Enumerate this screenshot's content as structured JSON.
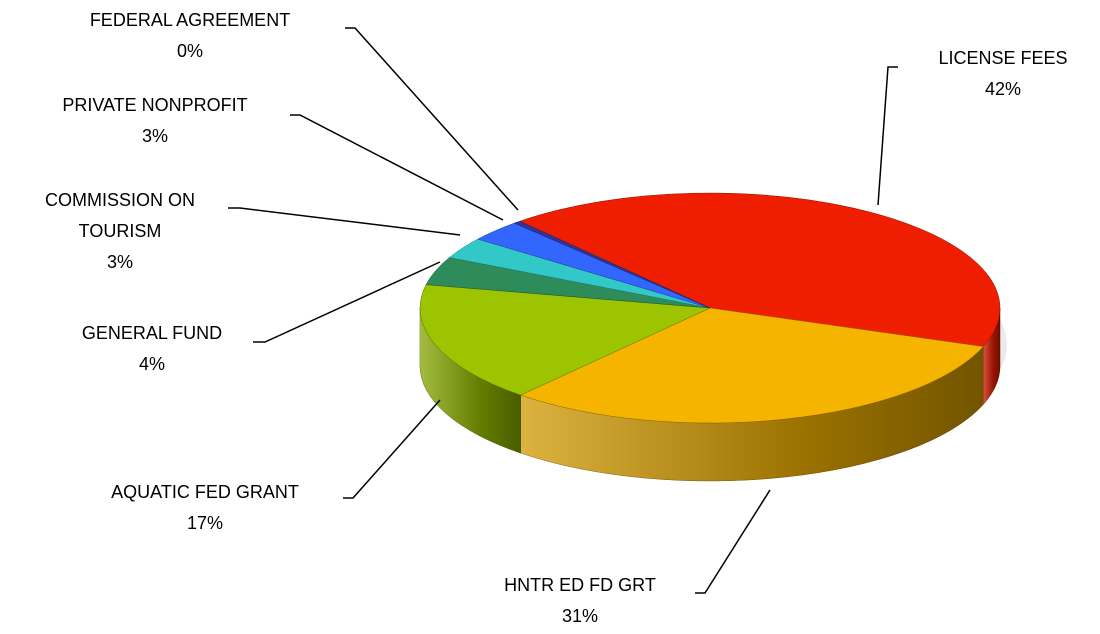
{
  "chart_data": {
    "type": "pie",
    "categories": [
      "LICENSE FEES",
      "HNTR ED FD GRT",
      "AQUATIC FED GRANT",
      "GENERAL FUND",
      "COMMISSION ON TOURISM",
      "PRIVATE NONPROFIT",
      "FEDERAL AGREEMENT"
    ],
    "values": [
      42,
      31,
      17,
      4,
      3,
      3,
      0.4
    ],
    "value_labels": [
      "42%",
      "31%",
      "17%",
      "4%",
      "3%",
      "3%",
      "0%"
    ],
    "colors": [
      "#f01e00",
      "#f5b400",
      "#9cc400",
      "#2e8b5a",
      "#33c8c8",
      "#3366ff",
      "#333399"
    ]
  }
}
